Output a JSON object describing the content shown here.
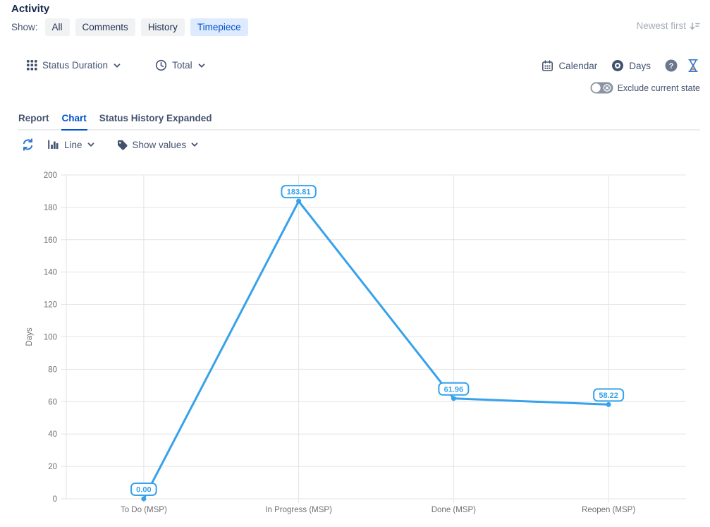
{
  "header": {
    "title": "Activity",
    "show_label": "Show:",
    "filters": [
      {
        "label": "All",
        "active": false
      },
      {
        "label": "Comments",
        "active": false
      },
      {
        "label": "History",
        "active": false
      },
      {
        "label": "Timepiece",
        "active": true
      }
    ],
    "sort_label": "Newest first"
  },
  "toolbar": {
    "metric_dropdown": "Status Duration",
    "aggregation_dropdown": "Total",
    "calendar_button": "Calendar",
    "unit_button": "Days",
    "exclude_toggle": {
      "label": "Exclude current state",
      "on": false
    }
  },
  "tabs": [
    {
      "label": "Report",
      "active": false
    },
    {
      "label": "Chart",
      "active": true
    },
    {
      "label": "Status History Expanded",
      "active": false
    }
  ],
  "chart_controls": {
    "chart_type_dropdown": "Line",
    "values_dropdown": "Show values"
  },
  "colors": {
    "accent_blue": "#0052CC",
    "selected_chip_bg": "#DEEBFF",
    "toolbar_navy": "#42526E",
    "muted_gray": "#A5ADBA",
    "chart_line": "#36A2EB",
    "gridline": "#E3E3E3",
    "axis_text": "#6F6F6F",
    "hourglass_sand": "#F18F43"
  },
  "chart_data": {
    "type": "line",
    "categories": [
      "To Do (MSP)",
      "In Progress (MSP)",
      "Done (MSP)",
      "Reopen (MSP)"
    ],
    "values": [
      0.0,
      183.81,
      61.96,
      58.22
    ],
    "value_labels": [
      "0.00",
      "183.81",
      "61.96",
      "58.22"
    ],
    "title": "",
    "xlabel": "",
    "ylabel": "Days",
    "ylim": [
      0,
      200
    ],
    "ytick_step": 20,
    "grid": true,
    "legend": false,
    "show_point_labels": true
  }
}
